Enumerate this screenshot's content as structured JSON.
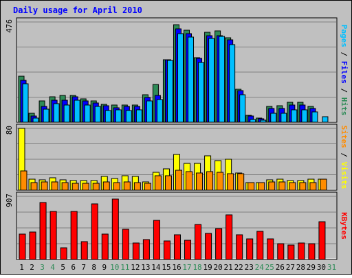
{
  "chart_data": [
    {
      "type": "bar",
      "title": "Daily usage for April 2010",
      "ymax_label": "476",
      "ylabel_parts": [
        {
          "text": "Pages",
          "color": "#00bfff"
        },
        {
          "text": " / ",
          "color": "#000000"
        },
        {
          "text": "Files",
          "color": "#0000ff"
        },
        {
          "text": " / ",
          "color": "#000000"
        },
        {
          "text": "Hits",
          "color": "#2e8b57"
        }
      ],
      "ylim": [
        0,
        476
      ],
      "grid": true,
      "categories": [
        "1",
        "2",
        "3",
        "4",
        "5",
        "6",
        "7",
        "8",
        "9",
        "10",
        "11",
        "12",
        "13",
        "14",
        "15",
        "16",
        "17",
        "18",
        "19",
        "20",
        "21",
        "22",
        "23",
        "24",
        "25",
        "26",
        "27",
        "28",
        "29",
        "30",
        "31"
      ],
      "series": [
        {
          "name": "Hits",
          "color": "#2e8b57",
          "values": [
            220,
            42,
            100,
            122,
            126,
            128,
            110,
            100,
            86,
            82,
            80,
            82,
            130,
            180,
            296,
            462,
            438,
            308,
            426,
            432,
            400,
            155,
            32,
            18,
            74,
            78,
            95,
            95,
            75,
            0,
            0
          ]
        },
        {
          "name": "Files",
          "color": "#0000ff",
          "values": [
            198,
            30,
            75,
            104,
            104,
            120,
            100,
            92,
            77,
            68,
            74,
            74,
            118,
            128,
            296,
            442,
            420,
            304,
            412,
            412,
            390,
            150,
            28,
            16,
            66,
            66,
            82,
            82,
            66,
            0,
            0
          ]
        },
        {
          "name": "Pages",
          "color": "#00bfff",
          "values": [
            182,
            20,
            62,
            88,
            82,
            104,
            80,
            76,
            54,
            58,
            54,
            58,
            102,
            108,
            292,
            420,
            403,
            285,
            398,
            406,
            370,
            130,
            14,
            10,
            44,
            44,
            60,
            60,
            50,
            25,
            0
          ]
        }
      ]
    },
    {
      "type": "bar",
      "ymax_label": "80",
      "ylabel_parts": [
        {
          "text": "Sites",
          "color": "#ff8c00"
        },
        {
          "text": " / ",
          "color": "#000000"
        },
        {
          "text": "Visits",
          "color": "#ffff00"
        }
      ],
      "ylim": [
        0,
        80
      ],
      "grid": true,
      "categories": [
        "1",
        "2",
        "3",
        "4",
        "5",
        "6",
        "7",
        "8",
        "9",
        "10",
        "11",
        "12",
        "13",
        "14",
        "15",
        "16",
        "17",
        "18",
        "19",
        "20",
        "21",
        "22",
        "23",
        "24",
        "25",
        "26",
        "27",
        "28",
        "29",
        "30",
        "31"
      ],
      "series": [
        {
          "name": "Visits",
          "color": "#ffff00",
          "values": [
            80,
            14,
            13,
            16,
            13,
            12,
            12,
            12,
            18,
            15,
            19,
            18,
            11,
            23,
            28,
            46,
            35,
            35,
            44,
            38,
            40,
            22,
            10,
            10,
            13,
            14,
            12,
            12,
            14,
            14,
            0
          ]
        },
        {
          "name": "Sites",
          "color": "#ff8c00",
          "values": [
            25,
            10,
            11,
            11,
            10,
            9,
            9,
            9,
            11,
            10,
            11,
            10,
            9,
            19,
            19,
            26,
            24,
            22,
            24,
            23,
            21,
            21,
            10,
            10,
            11,
            11,
            10,
            10,
            10,
            14,
            0
          ]
        }
      ]
    },
    {
      "type": "bar",
      "ymax_label": "907",
      "ylabel_parts": [
        {
          "text": "KBytes",
          "color": "#ff0000"
        }
      ],
      "ylim": [
        0,
        907
      ],
      "grid": true,
      "categories": [
        "1",
        "2",
        "3",
        "4",
        "5",
        "6",
        "7",
        "8",
        "9",
        "10",
        "11",
        "12",
        "13",
        "14",
        "15",
        "16",
        "17",
        "18",
        "19",
        "20",
        "21",
        "22",
        "23",
        "24",
        "25",
        "26",
        "27",
        "28",
        "29",
        "30",
        "31"
      ],
      "series": [
        {
          "name": "KBytes",
          "color": "#ff0000",
          "values": [
            360,
            390,
            820,
            690,
            170,
            690,
            260,
            800,
            360,
            870,
            430,
            240,
            290,
            560,
            270,
            350,
            280,
            500,
            370,
            440,
            640,
            350,
            300,
            400,
            300,
            230,
            210,
            240,
            230,
            540,
            0
          ]
        }
      ]
    }
  ],
  "x_labels": [
    {
      "text": "1",
      "color": "#000000"
    },
    {
      "text": "2",
      "color": "#000000"
    },
    {
      "text": "3",
      "color": "#2e8b57"
    },
    {
      "text": "4",
      "color": "#2e8b57"
    },
    {
      "text": "5",
      "color": "#000000"
    },
    {
      "text": "6",
      "color": "#000000"
    },
    {
      "text": "7",
      "color": "#000000"
    },
    {
      "text": "8",
      "color": "#000000"
    },
    {
      "text": "9",
      "color": "#000000"
    },
    {
      "text": "10",
      "color": "#2e8b57"
    },
    {
      "text": "11",
      "color": "#2e8b57"
    },
    {
      "text": "12",
      "color": "#000000"
    },
    {
      "text": "13",
      "color": "#000000"
    },
    {
      "text": "14",
      "color": "#000000"
    },
    {
      "text": "15",
      "color": "#000000"
    },
    {
      "text": "16",
      "color": "#000000"
    },
    {
      "text": "17",
      "color": "#2e8b57"
    },
    {
      "text": "18",
      "color": "#2e8b57"
    },
    {
      "text": "19",
      "color": "#000000"
    },
    {
      "text": "20",
      "color": "#000000"
    },
    {
      "text": "21",
      "color": "#000000"
    },
    {
      "text": "22",
      "color": "#000000"
    },
    {
      "text": "23",
      "color": "#000000"
    },
    {
      "text": "24",
      "color": "#2e8b57"
    },
    {
      "text": "25",
      "color": "#2e8b57"
    },
    {
      "text": "26",
      "color": "#000000"
    },
    {
      "text": "27",
      "color": "#000000"
    },
    {
      "text": "28",
      "color": "#000000"
    },
    {
      "text": "29",
      "color": "#000000"
    },
    {
      "text": "30",
      "color": "#000000"
    },
    {
      "text": "31",
      "color": "#2e8b57"
    }
  ],
  "colors": {
    "background": "#c0c0c0",
    "panel": "#c0c0c0",
    "grid": "#808080",
    "title": "#0000ff"
  }
}
